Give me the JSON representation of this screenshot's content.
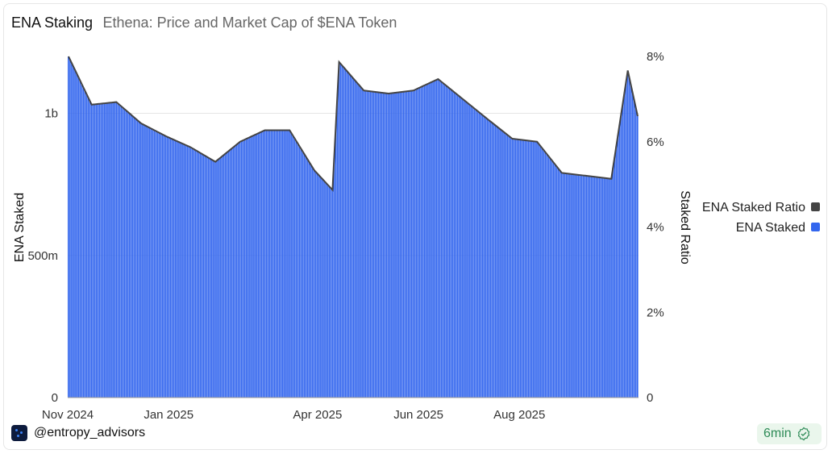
{
  "header": {
    "title": "ENA Staking",
    "subtitle": "Ethena: Price and Market Cap of $ENA Token"
  },
  "footer": {
    "author": "@entropy_advisors",
    "badge": "6min",
    "badge_icon": "check-badge-icon",
    "avatar_icon": "entropy-logo-icon"
  },
  "colors": {
    "bar": "#3366ee",
    "ratio_line": "#444444",
    "grid": "#e5e5e5",
    "badge_bg": "#eaf6ec",
    "badge_text": "#2e8b57"
  },
  "chart_data": {
    "type": "bar",
    "x_ticks": [
      "Nov 2024",
      "Jan 2025",
      "Apr 2025",
      "Jun 2025",
      "Aug 2025"
    ],
    "y_left": {
      "label": "ENA Staked",
      "ticks": [
        "0",
        "500m",
        "1b"
      ],
      "range": [
        0,
        1200000000
      ]
    },
    "y_right": {
      "label": "Staked Ratio",
      "ticks": [
        "0",
        "2%",
        "4%",
        "6%",
        "8%"
      ],
      "range": [
        0,
        8
      ]
    },
    "legend": {
      "position": "right",
      "items": [
        {
          "name": "ENA Staked Ratio",
          "color": "#444444"
        },
        {
          "name": "ENA Staked",
          "color": "#3366ee"
        }
      ]
    },
    "series": [
      {
        "name": "ENA Staked",
        "axis": "left",
        "x": [
          "2024-11-01",
          "2024-11-15",
          "2024-11-30",
          "2024-12-15",
          "2024-12-30",
          "2025-01-14",
          "2025-01-29",
          "2025-02-13",
          "2025-02-28",
          "2025-03-15",
          "2025-03-30",
          "2025-04-10",
          "2025-04-14",
          "2025-04-29",
          "2025-05-14",
          "2025-05-29",
          "2025-06-13",
          "2025-06-28",
          "2025-07-13",
          "2025-07-28",
          "2025-08-12",
          "2025-08-27",
          "2025-09-11",
          "2025-09-26",
          "2025-10-06",
          "2025-10-12"
        ],
        "values": [
          1200000000,
          1030000000,
          1040000000,
          965000000,
          920000000,
          880000000,
          830000000,
          900000000,
          940000000,
          940000000,
          800000000,
          730000000,
          1180000000,
          1080000000,
          1070000000,
          1080000000,
          1120000000,
          1050000000,
          980000000,
          910000000,
          900000000,
          790000000,
          780000000,
          770000000,
          1150000000,
          990000000
        ]
      },
      {
        "name": "ENA Staked Ratio",
        "axis": "right",
        "x": [
          "2024-11-01",
          "2024-11-15",
          "2024-11-30",
          "2024-12-15",
          "2024-12-30",
          "2025-01-14",
          "2025-01-29",
          "2025-02-13",
          "2025-02-28",
          "2025-03-15",
          "2025-03-30",
          "2025-04-10",
          "2025-04-14",
          "2025-04-29",
          "2025-05-14",
          "2025-05-29",
          "2025-06-13",
          "2025-06-28",
          "2025-07-13",
          "2025-07-28",
          "2025-08-12",
          "2025-08-27",
          "2025-09-11",
          "2025-09-26",
          "2025-10-06",
          "2025-10-12"
        ],
        "values": [
          8.0,
          6.87,
          6.93,
          6.43,
          6.13,
          5.87,
          5.53,
          6.0,
          6.27,
          6.27,
          5.33,
          4.87,
          7.87,
          7.2,
          7.13,
          7.2,
          7.47,
          7.0,
          6.53,
          6.07,
          6.0,
          5.27,
          5.2,
          5.13,
          7.67,
          6.6
        ]
      }
    ]
  }
}
